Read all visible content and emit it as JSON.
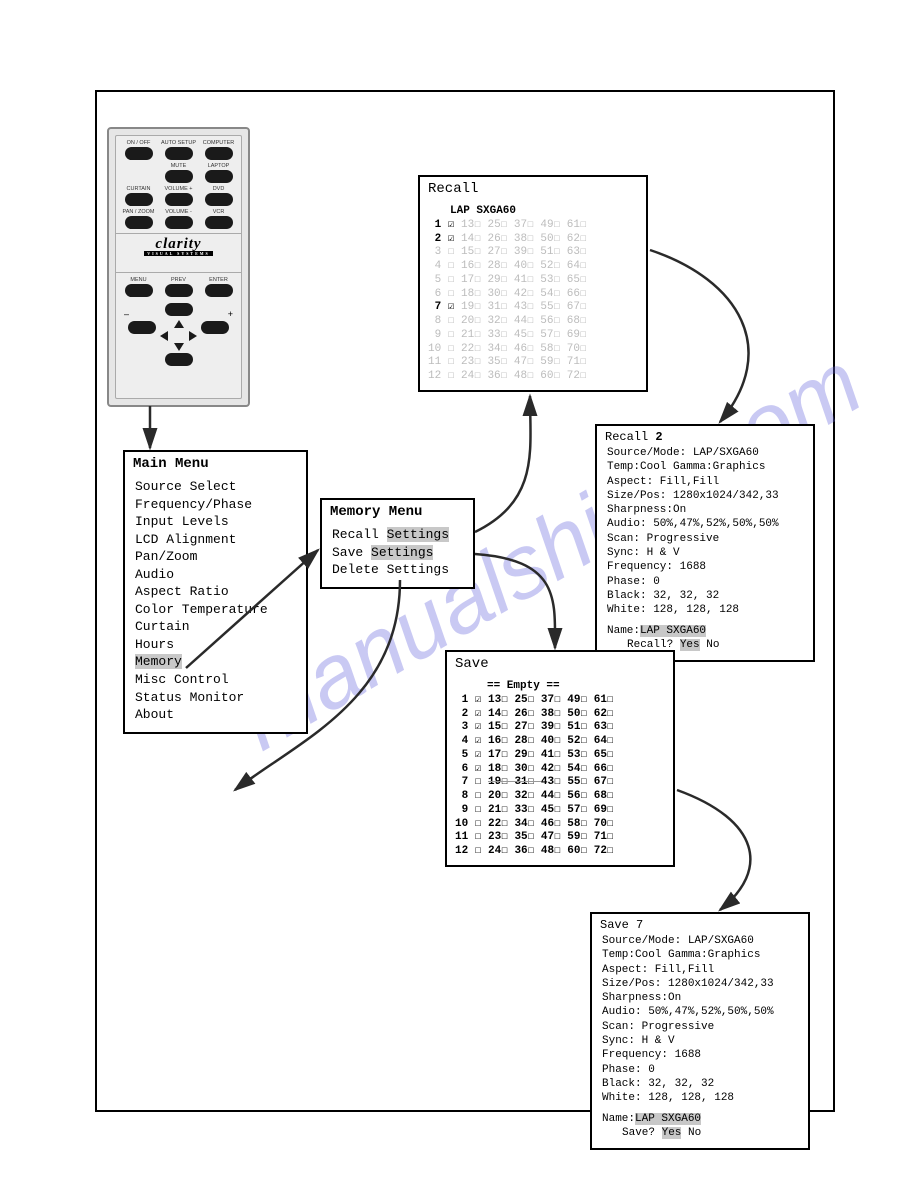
{
  "watermark": "manualshive.com",
  "remote": {
    "brand": "clarity",
    "brand_sub": "VISUAL SYSTEMS",
    "buttons_top": [
      "ON / OFF",
      "AUTO SETUP",
      "COMPUTER",
      "",
      "MUTE",
      "LAPTOP",
      "CURTAIN",
      "VOLUME +",
      "DVD",
      "PAN / ZOOM",
      "VOLUME -",
      "VCR"
    ],
    "buttons_mid": [
      "MENU",
      "PREV",
      "ENTER"
    ]
  },
  "main_menu": {
    "title": "Main Menu",
    "items": [
      "Source Select",
      "Frequency/Phase",
      "Input Levels",
      "LCD Alignment",
      "Pan/Zoom",
      "Audio",
      "Aspect Ratio",
      "Color Temperature",
      "Curtain",
      "Hours",
      "Memory",
      "Misc Control",
      "Status Monitor",
      "About"
    ],
    "highlighted_index": 10
  },
  "memory_menu": {
    "title": "Memory Menu",
    "items": [
      "Recall Settings",
      "Save Settings",
      "Delete Settings"
    ],
    "highlighted_indices": [
      0,
      1
    ]
  },
  "recall": {
    "title": "Recall",
    "subtitle": "LAP SXGA60",
    "bold_rows": [
      1,
      2,
      7
    ],
    "special_cell": {
      "row": 3,
      "col": 2,
      "text": "27"
    },
    "cols": [
      [
        1,
        2,
        3,
        4,
        5,
        6,
        7,
        8,
        9,
        10,
        11,
        12
      ],
      [
        13,
        14,
        15,
        16,
        17,
        18,
        19,
        20,
        21,
        22,
        23,
        24
      ],
      [
        25,
        26,
        27,
        28,
        29,
        30,
        31,
        32,
        33,
        34,
        35,
        36
      ],
      [
        37,
        38,
        39,
        40,
        41,
        42,
        43,
        44,
        45,
        46,
        47,
        48
      ],
      [
        49,
        50,
        51,
        52,
        53,
        54,
        55,
        56,
        57,
        58,
        59,
        60
      ],
      [
        61,
        62,
        63,
        64,
        65,
        66,
        67,
        68,
        69,
        70,
        71,
        72
      ]
    ],
    "checks": {
      "1": true,
      "2": true,
      "7": true
    }
  },
  "recall_detail": {
    "title": "Recall 2",
    "lines": [
      "Source/Mode: LAP/SXGA60",
      "Temp:Cool  Gamma:Graphics",
      "Aspect: Fill,Fill",
      "Size/Pos: 1280x1024/342,33",
      "Sharpness:On",
      "Audio: 50%,47%,52%,50%,50%",
      "Scan: Progressive",
      "Sync: H & V",
      "Frequency: 1688",
      "Phase: 0",
      "Black:  32,  32,  32",
      "White: 128, 128, 128"
    ],
    "name_line": "Name:LAP SXGA60",
    "prompt_label": "Recall?",
    "prompt_yes": "Yes",
    "prompt_no": "No"
  },
  "save": {
    "title": "Save",
    "subtitle": "== Empty ==",
    "cols": [
      [
        1,
        2,
        3,
        4,
        5,
        6,
        7,
        8,
        9,
        10,
        11,
        12
      ],
      [
        13,
        14,
        15,
        16,
        17,
        18,
        19,
        20,
        21,
        22,
        23,
        24
      ],
      [
        25,
        26,
        27,
        28,
        29,
        30,
        31,
        32,
        33,
        34,
        35,
        36
      ],
      [
        37,
        38,
        39,
        40,
        41,
        42,
        43,
        44,
        45,
        46,
        47,
        48
      ],
      [
        49,
        50,
        51,
        52,
        53,
        54,
        55,
        56,
        57,
        58,
        59,
        60
      ],
      [
        61,
        62,
        63,
        64,
        65,
        66,
        67,
        68,
        69,
        70,
        71,
        72
      ]
    ],
    "checks": {
      "1": true,
      "2": true,
      "3": true,
      "4": true,
      "5": true,
      "6": true
    },
    "highlighted_row": 7
  },
  "save_detail": {
    "title": "Save 7",
    "lines": [
      "Source/Mode: LAP/SXGA60",
      "Temp:Cool  Gamma:Graphics",
      "Aspect: Fill,Fill",
      "Size/Pos: 1280x1024/342,33",
      "Sharpness:On",
      "Audio: 50%,47%,52%,50%,50%",
      "Scan: Progressive",
      "Sync: H & V",
      "Frequency: 1688",
      "Phase: 0",
      "Black:  32,  32,  32",
      "White: 128, 128, 128"
    ],
    "name_line": "Name:LAP SXGA60",
    "prompt_label": "Save?",
    "prompt_yes": "Yes",
    "prompt_no": "No"
  },
  "colors": {
    "border": "#000000",
    "bg": "#ffffff",
    "highlight": "#c8c8c8",
    "grey": "#bcbcbc",
    "watermark": "rgba(100,100,220,0.35)"
  }
}
